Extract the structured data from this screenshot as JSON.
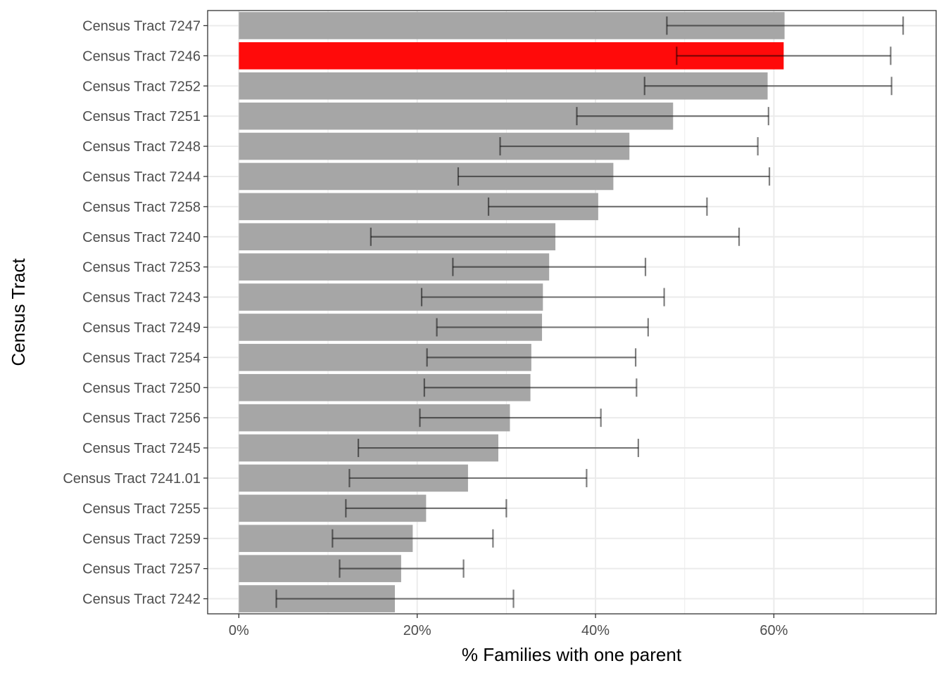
{
  "chart_data": {
    "type": "bar",
    "orientation": "horizontal",
    "xlabel": "% Families with one parent",
    "ylabel": "Census Tract",
    "xlim": [
      -0.035,
      0.782
    ],
    "x_ticks": [
      0,
      0.2,
      0.4,
      0.6
    ],
    "x_tick_labels": [
      "0%",
      "20%",
      "40%",
      "60%"
    ],
    "grid": true,
    "bar_color": "#a6a6a6",
    "highlight_color": "#ff0a0a",
    "highlight": "Census Tract 7246",
    "categories": [
      "Census Tract 7247",
      "Census Tract 7246",
      "Census Tract 7252",
      "Census Tract 7251",
      "Census Tract 7248",
      "Census Tract 7244",
      "Census Tract 7258",
      "Census Tract 7240",
      "Census Tract 7253",
      "Census Tract 7243",
      "Census Tract 7249",
      "Census Tract 7254",
      "Census Tract 7250",
      "Census Tract 7256",
      "Census Tract 7245",
      "Census Tract 7241.01",
      "Census Tract 7255",
      "Census Tract 7259",
      "Census Tract 7257",
      "Census Tract 7242"
    ],
    "values": [
      0.612,
      0.611,
      0.593,
      0.487,
      0.438,
      0.42,
      0.403,
      0.355,
      0.348,
      0.341,
      0.34,
      0.328,
      0.327,
      0.304,
      0.291,
      0.257,
      0.21,
      0.195,
      0.182,
      0.175
    ],
    "error_low": [
      0.48,
      0.491,
      0.455,
      0.379,
      0.293,
      0.246,
      0.28,
      0.148,
      0.24,
      0.205,
      0.222,
      0.211,
      0.208,
      0.203,
      0.134,
      0.124,
      0.12,
      0.105,
      0.113,
      0.042
    ],
    "error_high": [
      0.745,
      0.731,
      0.732,
      0.594,
      0.582,
      0.595,
      0.525,
      0.561,
      0.456,
      0.477,
      0.459,
      0.445,
      0.446,
      0.406,
      0.448,
      0.39,
      0.3,
      0.285,
      0.252,
      0.308
    ]
  }
}
